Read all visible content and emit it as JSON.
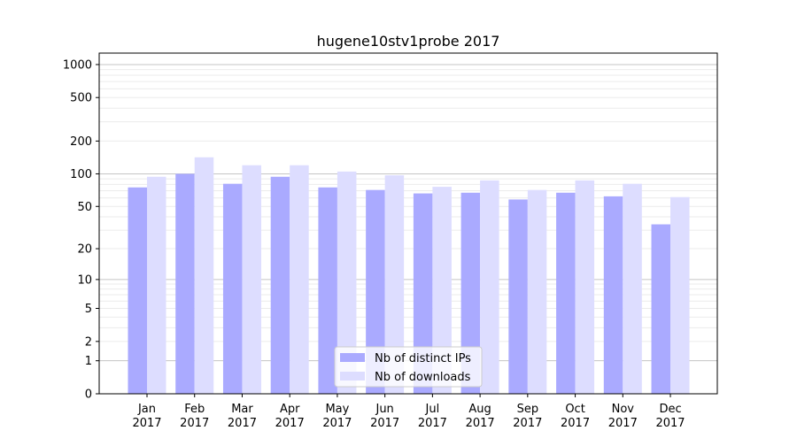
{
  "chart_data": {
    "type": "bar",
    "title": "hugene10stv1probe 2017",
    "xlabel": "",
    "ylabel": "",
    "yscale": "log(1+y)",
    "ylim": [
      0,
      1270
    ],
    "yticks": [
      0,
      1,
      2,
      5,
      10,
      20,
      50,
      100,
      200,
      500,
      1000
    ],
    "grid": true,
    "legend_position": "bottom-center",
    "categories": [
      "Jan\n2017",
      "Feb\n2017",
      "Mar\n2017",
      "Apr\n2017",
      "May\n2017",
      "Jun\n2017",
      "Jul\n2017",
      "Aug\n2017",
      "Sep\n2017",
      "Oct\n2017",
      "Nov\n2017",
      "Dec\n2017"
    ],
    "series": [
      {
        "name": "Nb of distinct IPs",
        "color": "#aaaaff",
        "values": [
          75,
          100,
          81,
          94,
          75,
          71,
          66,
          67,
          58,
          67,
          62,
          34
        ]
      },
      {
        "name": "Nb of downloads",
        "color": "#ddddff",
        "values": [
          94,
          142,
          120,
          120,
          105,
          97,
          76,
          87,
          71,
          87,
          81,
          61
        ]
      }
    ]
  }
}
